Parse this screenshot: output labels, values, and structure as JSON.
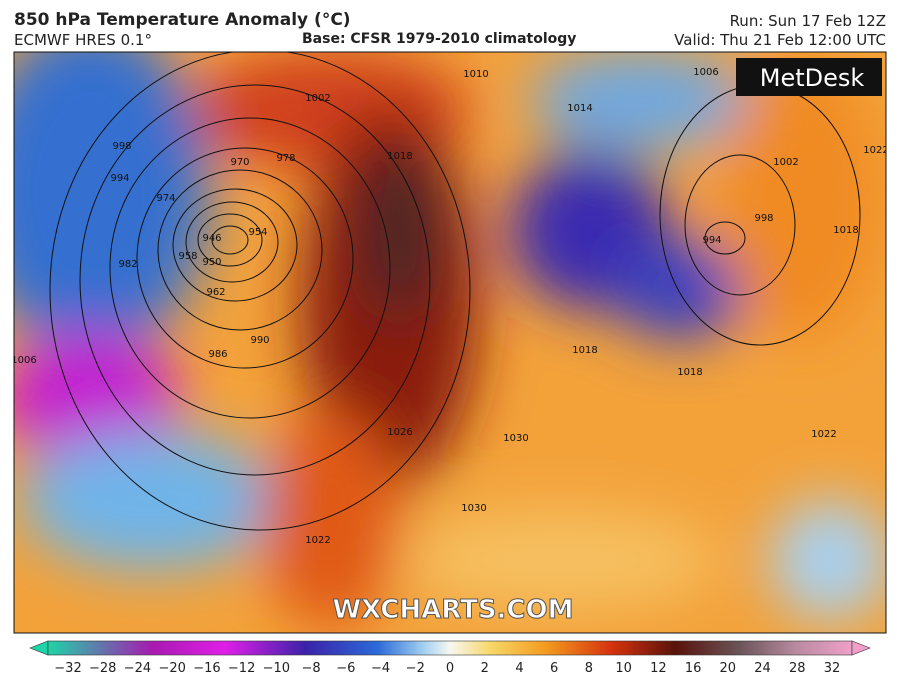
{
  "header": {
    "title": "850 hPa Temperature Anomaly (°C)",
    "model": "ECMWF HRES 0.1°",
    "base": "Base: CFSR 1979-2010 climatology",
    "run": "Run: Sun 17 Feb 12Z",
    "valid": "Valid: Thu 21 Feb 12:00 UTC"
  },
  "logo": "MetDesk",
  "watermark": "WXCHARTS.COM",
  "isobars": [
    "1010",
    "1014",
    "1006",
    "1002",
    "998",
    "994",
    "1018",
    "1022",
    "974",
    "970",
    "978",
    "982",
    "986",
    "990",
    "962",
    "958",
    "954",
    "950",
    "946",
    "1006",
    "1026",
    "1030",
    "1030",
    "1022",
    "1018",
    "1018",
    "1002",
    "998",
    "994",
    "1022",
    "1018"
  ],
  "colorbar": {
    "ticks": [
      "−32",
      "−28",
      "−24",
      "−20",
      "−16",
      "−12",
      "−10",
      "−8",
      "−6",
      "−4",
      "−2",
      "0",
      "2",
      "4",
      "6",
      "8",
      "10",
      "12",
      "16",
      "20",
      "24",
      "28",
      "32"
    ]
  }
}
